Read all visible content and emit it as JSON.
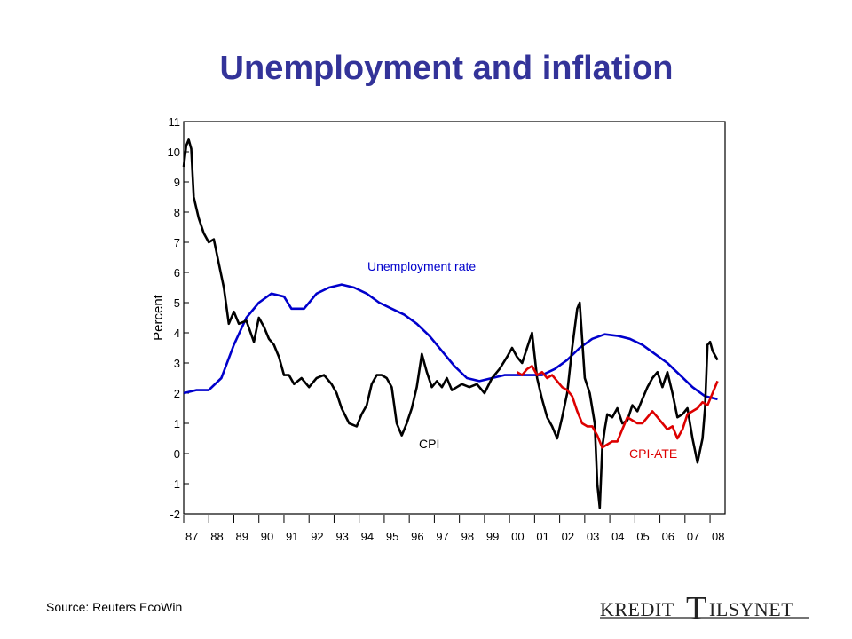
{
  "page": {
    "title": "Unemployment and inflation",
    "source": "Source: Reuters EcoWin"
  },
  "logo": {
    "text": "KREDITTILSYNET",
    "part1": "KREDIT",
    "part2": "T",
    "part3": "ILSYNET"
  },
  "chart_data": {
    "type": "line",
    "title": "Unemployment and inflation",
    "ylabel": "Percent",
    "xlabel": "",
    "ylim": [
      -2,
      11
    ],
    "xlim": [
      1987,
      2008.6
    ],
    "yticks": [
      -2,
      -1,
      0,
      1,
      2,
      3,
      4,
      5,
      6,
      7,
      8,
      9,
      10,
      11
    ],
    "xticks": [
      "87",
      "88",
      "89",
      "90",
      "91",
      "92",
      "93",
      "94",
      "95",
      "96",
      "97",
      "98",
      "99",
      "00",
      "01",
      "02",
      "03",
      "04",
      "05",
      "06",
      "07",
      "08"
    ],
    "legend_position": "inline labels",
    "grid": false,
    "annotations": [
      {
        "text": "Unemployment rate",
        "series": "Unemployment rate"
      },
      {
        "text": "CPI",
        "series": "CPI"
      },
      {
        "text": "CPI-ATE",
        "series": "CPI-ATE"
      }
    ],
    "series": [
      {
        "name": "Unemployment rate",
        "color": "#0000cc",
        "x": [
          1987.0,
          1987.5,
          1988.0,
          1988.5,
          1989.0,
          1989.5,
          1990.0,
          1990.5,
          1991.0,
          1991.3,
          1991.8,
          1992.3,
          1992.8,
          1993.3,
          1993.8,
          1994.3,
          1994.8,
          1995.3,
          1995.8,
          1996.3,
          1996.8,
          1997.3,
          1997.8,
          1998.3,
          1998.8,
          1999.3,
          1999.8,
          2000.3,
          2000.8,
          2001.3,
          2001.8,
          2002.3,
          2002.8,
          2003.3,
          2003.8,
          2004.3,
          2004.8,
          2005.3,
          2005.8,
          2006.3,
          2006.8,
          2007.3,
          2007.8,
          2008.3
        ],
        "y": [
          2.0,
          2.1,
          2.1,
          2.5,
          3.6,
          4.5,
          5.0,
          5.3,
          5.2,
          4.8,
          4.8,
          5.3,
          5.5,
          5.6,
          5.5,
          5.3,
          5.0,
          4.8,
          4.6,
          4.3,
          3.9,
          3.4,
          2.9,
          2.5,
          2.4,
          2.5,
          2.6,
          2.6,
          2.6,
          2.6,
          2.8,
          3.1,
          3.5,
          3.8,
          3.95,
          3.9,
          3.8,
          3.6,
          3.3,
          3.0,
          2.6,
          2.2,
          1.9,
          1.8
        ]
      },
      {
        "name": "CPI",
        "color": "#000000",
        "x": [
          1987.0,
          1987.1,
          1987.2,
          1987.3,
          1987.4,
          1987.6,
          1987.8,
          1988.0,
          1988.2,
          1988.4,
          1988.6,
          1988.8,
          1989.0,
          1989.2,
          1989.5,
          1989.8,
          1990.0,
          1990.2,
          1990.4,
          1990.6,
          1990.8,
          1991.0,
          1991.2,
          1991.4,
          1991.7,
          1992.0,
          1992.3,
          1992.6,
          1992.9,
          1993.1,
          1993.3,
          1993.6,
          1993.9,
          1994.1,
          1994.3,
          1994.5,
          1994.7,
          1994.9,
          1995.1,
          1995.3,
          1995.5,
          1995.7,
          1995.9,
          1996.1,
          1996.3,
          1996.5,
          1996.7,
          1996.9,
          1997.1,
          1997.3,
          1997.5,
          1997.7,
          1997.9,
          1998.1,
          1998.4,
          1998.7,
          1999.0,
          1999.3,
          1999.6,
          1999.9,
          2000.1,
          2000.3,
          2000.5,
          2000.7,
          2000.9,
          2001.1,
          2001.3,
          2001.5,
          2001.7,
          2001.9,
          2002.1,
          2002.3,
          2002.5,
          2002.7,
          2002.8,
          2003.0,
          2003.2,
          2003.4,
          2003.5,
          2003.6,
          2003.7,
          2003.8,
          2003.9,
          2004.1,
          2004.3,
          2004.5,
          2004.7,
          2004.9,
          2005.1,
          2005.3,
          2005.5,
          2005.7,
          2005.9,
          2006.1,
          2006.3,
          2006.5,
          2006.7,
          2006.9,
          2007.1,
          2007.3,
          2007.5,
          2007.7,
          2007.8,
          2007.9,
          2008.0,
          2008.1,
          2008.3
        ],
        "y": [
          9.5,
          10.2,
          10.4,
          10.1,
          8.5,
          7.8,
          7.3,
          7.0,
          7.1,
          6.3,
          5.5,
          4.3,
          4.7,
          4.3,
          4.4,
          3.7,
          4.5,
          4.2,
          3.8,
          3.6,
          3.2,
          2.6,
          2.6,
          2.3,
          2.5,
          2.2,
          2.5,
          2.6,
          2.3,
          2.0,
          1.5,
          1.0,
          0.9,
          1.3,
          1.6,
          2.3,
          2.6,
          2.6,
          2.5,
          2.2,
          1.0,
          0.6,
          1.0,
          1.5,
          2.2,
          3.3,
          2.7,
          2.2,
          2.4,
          2.2,
          2.5,
          2.1,
          2.2,
          2.3,
          2.2,
          2.3,
          2.0,
          2.5,
          2.8,
          3.2,
          3.5,
          3.2,
          3.0,
          3.5,
          4.0,
          2.5,
          1.8,
          1.2,
          0.9,
          0.5,
          1.2,
          2.0,
          3.5,
          4.8,
          5.0,
          2.5,
          2.0,
          1.0,
          -1.0,
          -1.8,
          0.2,
          0.8,
          1.3,
          1.2,
          1.5,
          1.0,
          1.1,
          1.6,
          1.4,
          1.8,
          2.2,
          2.5,
          2.7,
          2.2,
          2.7,
          2.0,
          1.2,
          1.3,
          1.5,
          0.5,
          -0.3,
          0.5,
          1.5,
          3.6,
          3.7,
          3.4,
          3.1
        ]
      },
      {
        "name": "CPI-ATE",
        "color": "#dd0000",
        "x": [
          2000.3,
          2000.5,
          2000.7,
          2000.9,
          2001.1,
          2001.3,
          2001.5,
          2001.7,
          2001.9,
          2002.1,
          2002.3,
          2002.5,
          2002.7,
          2002.9,
          2003.1,
          2003.3,
          2003.5,
          2003.7,
          2003.9,
          2004.1,
          2004.3,
          2004.5,
          2004.7,
          2004.9,
          2005.1,
          2005.3,
          2005.5,
          2005.7,
          2005.9,
          2006.1,
          2006.3,
          2006.5,
          2006.7,
          2006.9,
          2007.1,
          2007.3,
          2007.5,
          2007.7,
          2007.9,
          2008.1,
          2008.3
        ],
        "y": [
          2.7,
          2.6,
          2.8,
          2.9,
          2.6,
          2.7,
          2.5,
          2.6,
          2.4,
          2.2,
          2.1,
          1.9,
          1.4,
          1.0,
          0.9,
          0.9,
          0.6,
          0.2,
          0.3,
          0.4,
          0.4,
          0.8,
          1.2,
          1.1,
          1.0,
          1.0,
          1.2,
          1.4,
          1.2,
          1.0,
          0.8,
          0.9,
          0.5,
          0.8,
          1.3,
          1.4,
          1.5,
          1.7,
          1.6,
          2.0,
          2.4
        ]
      }
    ]
  }
}
